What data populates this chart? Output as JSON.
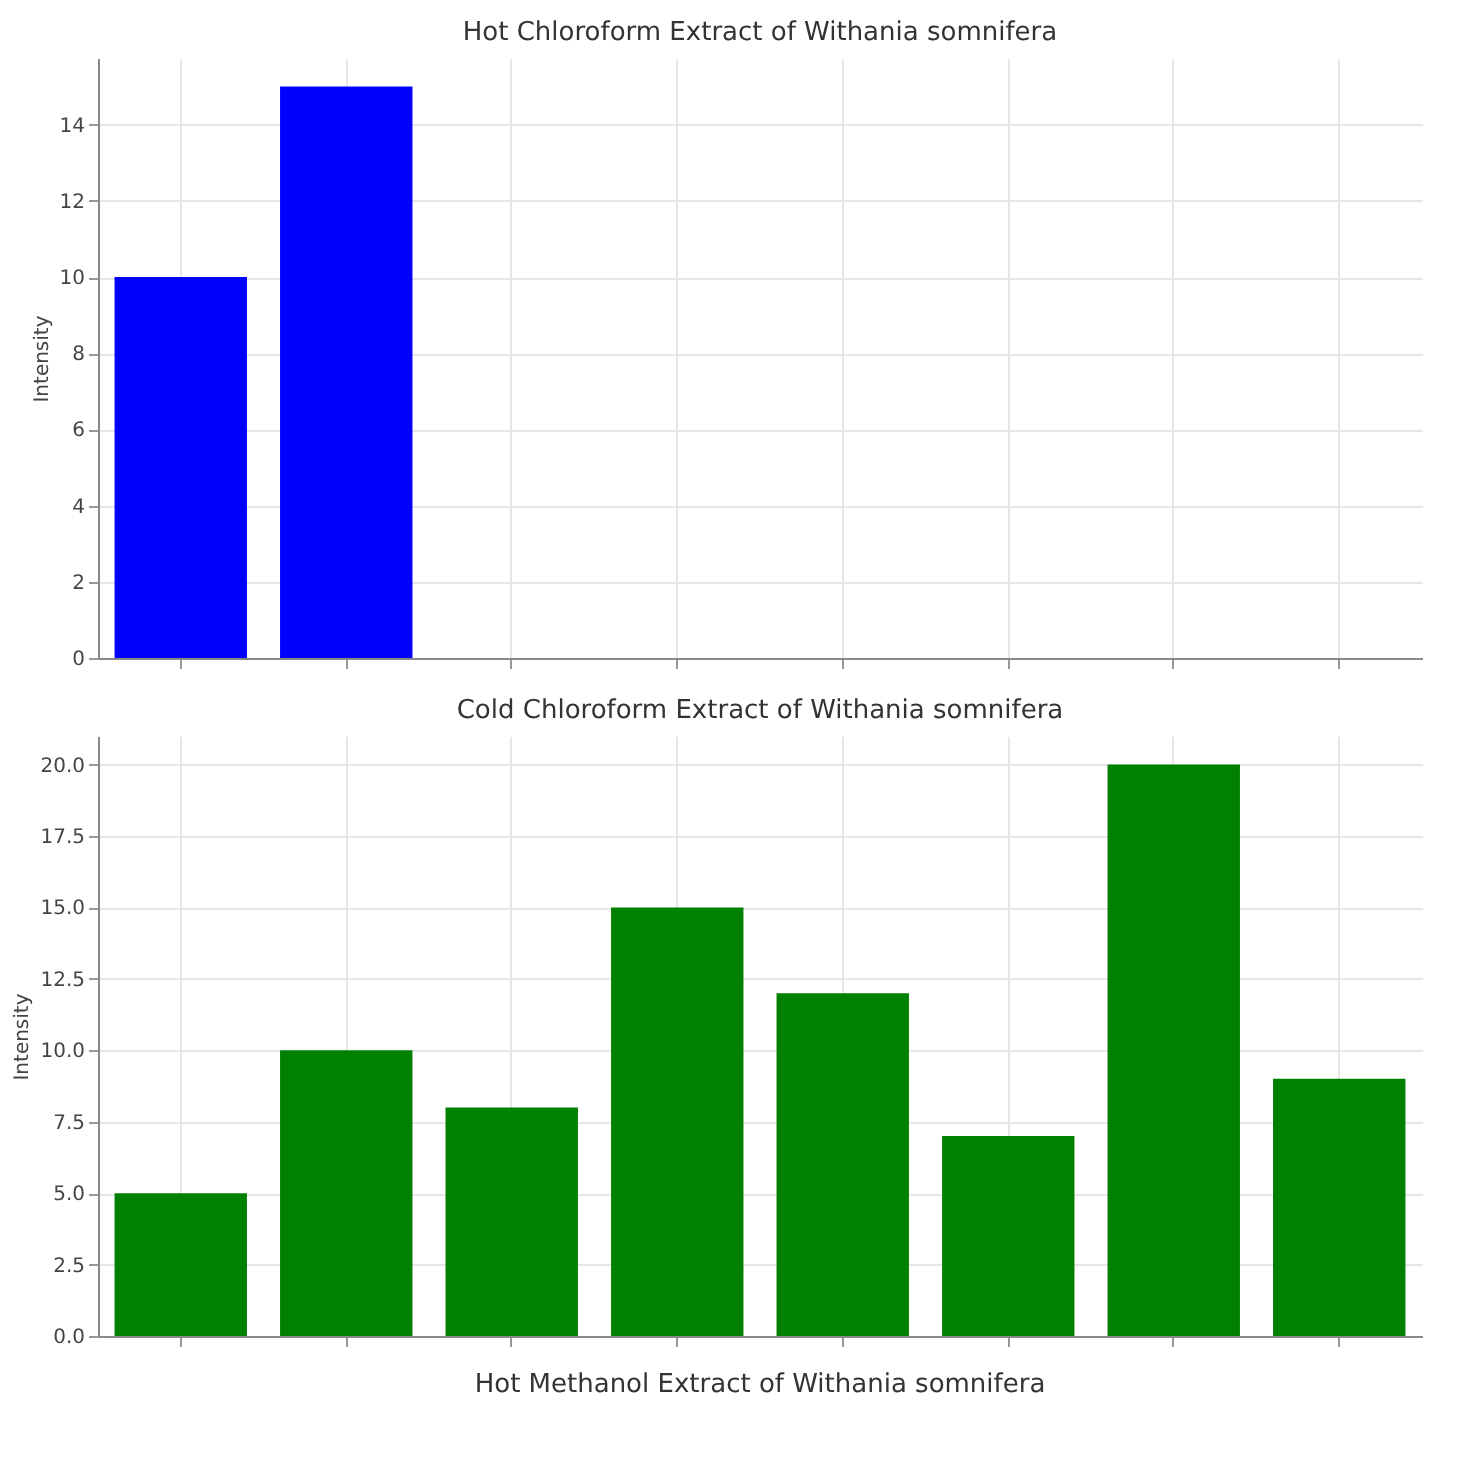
{
  "chart_data": [
    {
      "type": "bar",
      "title": "Hot Chloroform Extract of Withania somnifera",
      "ylabel": "Intensity",
      "categories": [
        null,
        null,
        null,
        null,
        null,
        null,
        null,
        null
      ],
      "values": [
        10,
        15,
        null,
        null,
        null,
        null,
        null,
        null
      ],
      "color": "#0000ff",
      "ylim": [
        0,
        15.75
      ],
      "yticks": [
        0,
        2,
        4,
        6,
        8,
        10,
        12,
        14
      ],
      "grid": true
    },
    {
      "type": "bar",
      "title": "Cold Chloroform Extract of Withania somnifera",
      "ylabel": "Intensity",
      "categories": [
        null,
        null,
        null,
        null,
        null,
        null,
        null,
        null
      ],
      "values": [
        5,
        10,
        8,
        15,
        12,
        7,
        20,
        9
      ],
      "color": "#008000",
      "ylim": [
        0,
        21
      ],
      "yticks": [
        {
          "value": 0,
          "label": "0.0"
        },
        {
          "value": 2.5,
          "label": "2.5"
        },
        {
          "value": 5,
          "label": "5.0"
        },
        {
          "value": 7.5,
          "label": "7.5"
        },
        {
          "value": 10,
          "label": "10.0"
        },
        {
          "value": 12.5,
          "label": "12.5"
        },
        {
          "value": 15,
          "label": "15.0"
        },
        {
          "value": 17.5,
          "label": "17.5"
        },
        {
          "value": 20,
          "label": "20.0"
        }
      ],
      "grid": true,
      "annotations": [
        "Hot Methanol Extract of Withania somnifera"
      ]
    }
  ]
}
